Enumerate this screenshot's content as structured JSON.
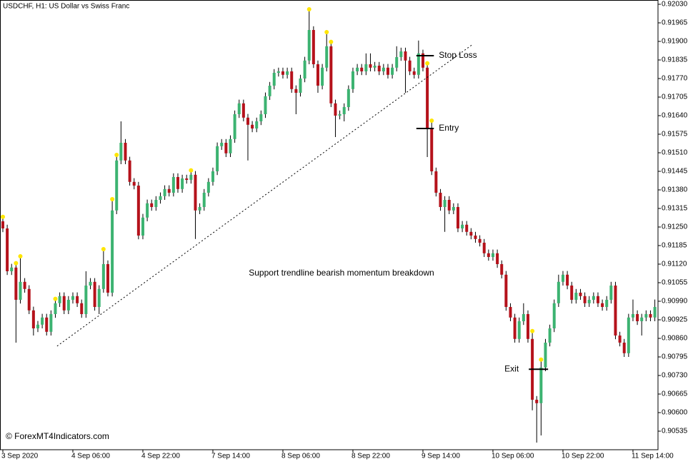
{
  "chart_data": {
    "type": "candlestick",
    "title": "USDCHF, H1:  US Dollar vs Swiss Franc",
    "annotation": "Support trendline bearish momentum breakdown",
    "watermark": "© ForexMT4Indicators.com",
    "up_color": "#3cb371",
    "down_color": "#b5121b",
    "wick_color": "#000000",
    "marker_color": "#ffe600",
    "xlim": [
      -0.65,
      149.72
    ],
    "xticks": [
      {
        "value": 0,
        "label": "3 Sep 2020"
      },
      {
        "value": 16,
        "label": "4 Sep 06:00"
      },
      {
        "value": 32,
        "label": "4 Sep 22:00"
      },
      {
        "value": 48,
        "label": "7 Sep 14:00"
      },
      {
        "value": 64,
        "label": "8 Sep 06:00"
      },
      {
        "value": 80,
        "label": "8 Sep 22:00"
      },
      {
        "value": 96,
        "label": "9 Sep 14:00"
      },
      {
        "value": 112,
        "label": "10 Sep 06:00"
      },
      {
        "value": 128,
        "label": "10 Sep 22:00"
      },
      {
        "value": 144,
        "label": "11 Sep 14:00"
      }
    ],
    "ylim": [
      0.9047,
      0.92045
    ],
    "yticks": [
      {
        "value": 0.9203,
        "label": "0.92030"
      },
      {
        "value": 0.91965,
        "label": "0.91965"
      },
      {
        "value": 0.919,
        "label": "0.91900"
      },
      {
        "value": 0.91835,
        "label": "0.91835"
      },
      {
        "value": 0.9177,
        "label": "0.91770"
      },
      {
        "value": 0.91705,
        "label": "0.91705"
      },
      {
        "value": 0.9164,
        "label": "0.91640"
      },
      {
        "value": 0.91575,
        "label": "0.91575"
      },
      {
        "value": 0.9151,
        "label": "0.91510"
      },
      {
        "value": 0.91445,
        "label": "0.91445"
      },
      {
        "value": 0.9138,
        "label": "0.91380"
      },
      {
        "value": 0.91315,
        "label": "0.91315"
      },
      {
        "value": 0.9125,
        "label": "0.91250"
      },
      {
        "value": 0.91185,
        "label": "0.91185"
      },
      {
        "value": 0.9112,
        "label": "0.91120"
      },
      {
        "value": 0.91055,
        "label": "0.91055"
      },
      {
        "value": 0.9099,
        "label": "0.90990"
      },
      {
        "value": 0.90925,
        "label": "0.90925"
      },
      {
        "value": 0.9086,
        "label": "0.90860"
      },
      {
        "value": 0.90795,
        "label": "0.90795"
      },
      {
        "value": 0.9073,
        "label": "0.90730"
      },
      {
        "value": 0.90665,
        "label": "0.90665"
      },
      {
        "value": 0.906,
        "label": "0.90600"
      },
      {
        "value": 0.90535,
        "label": "0.90535"
      }
    ],
    "open": [
      0.9127,
      0.91245,
      0.91095,
      0.91108,
      0.90995,
      0.91058,
      0.91033,
      0.90958,
      0.90895,
      0.90908,
      0.90933,
      0.90883,
      0.90945,
      0.90983,
      0.91008,
      0.90958,
      0.90995,
      0.91008,
      0.90983,
      0.90945,
      0.91045,
      0.91058,
      0.9097,
      0.91033,
      0.9112,
      0.9102,
      0.91308,
      0.91483,
      0.91545,
      0.91483,
      0.91408,
      0.91395,
      0.9122,
      0.91283,
      0.91333,
      0.9132,
      0.91345,
      0.91358,
      0.91383,
      0.9137,
      0.91425,
      0.91383,
      0.9142,
      0.91415,
      0.91433,
      0.91308,
      0.9132,
      0.9137,
      0.91408,
      0.91445,
      0.91533,
      0.91545,
      0.91508,
      0.91558,
      0.91645,
      0.91683,
      0.91633,
      0.91608,
      0.91595,
      0.9162,
      0.91645,
      0.91708,
      0.91745,
      0.9179,
      0.91795,
      0.91783,
      0.91795,
      0.91733,
      0.9172,
      0.9177,
      0.91833,
      0.9194,
      0.9182,
      0.91745,
      0.91808,
      0.91883,
      0.91683,
      0.9164,
      0.91645,
      0.9167,
      0.91733,
      0.91795,
      0.91808,
      0.91795,
      0.9182,
      0.91808,
      0.91815,
      0.91795,
      0.91808,
      0.91783,
      0.91808,
      0.91845,
      0.91865,
      0.91833,
      0.91795,
      0.91783,
      0.91858,
      0.91808,
      0.91595,
      0.91445,
      0.9137,
      0.9132,
      0.91345,
      0.91308,
      0.9132,
      0.91245,
      0.91258,
      0.91233,
      0.9122,
      0.91208,
      0.91195,
      0.91158,
      0.91145,
      0.91158,
      0.9112,
      0.91083,
      0.9097,
      0.90933,
      0.90858,
      0.9092,
      0.90945,
      0.90858,
      0.90645,
      0.90633,
      0.90758,
      0.90845,
      0.90895,
      0.90983,
      0.91058,
      0.91083,
      0.91045,
      0.90995,
      0.9102,
      0.91008,
      0.90983,
      0.90995,
      0.91008,
      0.90983,
      0.9097,
      0.90995,
      0.91045,
      0.9087,
      0.90845,
      0.90808,
      0.90933,
      0.90945,
      0.9092,
      0.90933,
      0.90945,
      0.90933
    ],
    "high": [
      0.91283,
      0.91258,
      0.91121,
      0.91121,
      0.91145,
      0.91071,
      0.91046,
      0.90971,
      0.90921,
      0.90946,
      0.90946,
      0.90958,
      0.90996,
      0.91021,
      0.91021,
      0.91008,
      0.91021,
      0.91021,
      0.90996,
      0.91095,
      0.91071,
      0.91071,
      0.91046,
      0.9117,
      0.91133,
      0.91345,
      0.915,
      0.9162,
      0.91558,
      0.91496,
      0.91421,
      0.91408,
      0.91296,
      0.91346,
      0.91346,
      0.91358,
      0.91371,
      0.91396,
      0.91396,
      0.91438,
      0.91438,
      0.91433,
      0.91433,
      0.91446,
      0.91446,
      0.91333,
      0.91383,
      0.91421,
      0.91458,
      0.91546,
      0.91558,
      0.91558,
      0.91571,
      0.91658,
      0.91696,
      0.91696,
      0.91646,
      0.91621,
      0.91633,
      0.91658,
      0.91721,
      0.91758,
      0.91803,
      0.91808,
      0.91808,
      0.91808,
      0.91808,
      0.91746,
      0.91783,
      0.91846,
      0.9201,
      0.91953,
      0.91833,
      0.91821,
      0.9193,
      0.91896,
      0.91696,
      0.91658,
      0.91683,
      0.91746,
      0.91808,
      0.91821,
      0.91821,
      0.91858,
      0.91858,
      0.91828,
      0.91828,
      0.91821,
      0.91821,
      0.91821,
      0.91883,
      0.91878,
      0.91878,
      0.91846,
      0.91808,
      0.91903,
      0.91871,
      0.91821,
      0.9162,
      0.91458,
      0.91383,
      0.91358,
      0.91358,
      0.91333,
      0.91333,
      0.91271,
      0.91271,
      0.91246,
      0.91233,
      0.91221,
      0.91208,
      0.91171,
      0.91171,
      0.91171,
      0.91133,
      0.91096,
      0.90983,
      0.90946,
      0.90933,
      0.90983,
      0.90958,
      0.90883,
      0.90658,
      0.90783,
      0.90858,
      0.90908,
      0.90996,
      0.91083,
      0.91096,
      0.91096,
      0.91058,
      0.91033,
      0.91033,
      0.91021,
      0.91008,
      0.91021,
      0.91021,
      0.90996,
      0.91008,
      0.91058,
      0.91058,
      0.90883,
      0.90858,
      0.90946,
      0.90996,
      0.90958,
      0.90946,
      0.90958,
      0.90958,
      0.90996
    ],
    "low": [
      0.91232,
      0.91082,
      0.91082,
      0.90845,
      0.90982,
      0.9102,
      0.90945,
      0.9087,
      0.90882,
      0.90895,
      0.9087,
      0.9087,
      0.90932,
      0.9097,
      0.90945,
      0.90945,
      0.90982,
      0.9097,
      0.90932,
      0.90932,
      0.91032,
      0.90957,
      0.90945,
      0.9102,
      0.91007,
      0.91007,
      0.91295,
      0.9147,
      0.9147,
      0.91395,
      0.91382,
      0.91207,
      0.91207,
      0.9127,
      0.91307,
      0.91307,
      0.91332,
      0.91345,
      0.91357,
      0.91357,
      0.9137,
      0.9137,
      0.91402,
      0.91402,
      0.91208,
      0.91295,
      0.91307,
      0.91357,
      0.91395,
      0.91432,
      0.9152,
      0.91495,
      0.91495,
      0.91545,
      0.91632,
      0.9162,
      0.91483,
      0.91582,
      0.91582,
      0.91607,
      0.91632,
      0.91695,
      0.91732,
      0.91777,
      0.9177,
      0.9177,
      0.9172,
      0.91645,
      0.91707,
      0.91757,
      0.9182,
      0.91807,
      0.9172,
      0.91732,
      0.91795,
      0.9167,
      0.91565,
      0.91627,
      0.9162,
      0.91657,
      0.9172,
      0.91782,
      0.91782,
      0.91782,
      0.91795,
      0.91795,
      0.91782,
      0.91782,
      0.9177,
      0.9177,
      0.91795,
      0.91832,
      0.9172,
      0.91782,
      0.9177,
      0.9177,
      0.91795,
      0.91495,
      0.91432,
      0.91357,
      0.91307,
      0.91233,
      0.91295,
      0.91295,
      0.91232,
      0.91232,
      0.9122,
      0.91207,
      0.91195,
      0.91182,
      0.91145,
      0.91132,
      0.91132,
      0.91107,
      0.9107,
      0.90957,
      0.9092,
      0.90845,
      0.90845,
      0.90907,
      0.90845,
      0.90608,
      0.90495,
      0.9052,
      0.90745,
      0.90832,
      0.90882,
      0.9097,
      0.91045,
      0.91032,
      0.90982,
      0.90982,
      0.90995,
      0.9097,
      0.9097,
      0.90982,
      0.9097,
      0.90957,
      0.90957,
      0.90982,
      0.90857,
      0.90832,
      0.90795,
      0.90795,
      0.9092,
      0.90907,
      0.9087,
      0.9092,
      0.9092,
      0.9092
    ],
    "close": [
      0.91245,
      0.91095,
      0.91108,
      0.90995,
      0.91058,
      0.91033,
      0.90958,
      0.90895,
      0.90908,
      0.90933,
      0.90883,
      0.90945,
      0.90983,
      0.91008,
      0.90958,
      0.90995,
      0.91008,
      0.90983,
      0.90945,
      0.91045,
      0.91058,
      0.9097,
      0.91033,
      0.9112,
      0.9102,
      0.91308,
      0.91483,
      0.91545,
      0.91483,
      0.91408,
      0.91395,
      0.9122,
      0.91283,
      0.91333,
      0.9132,
      0.91345,
      0.91358,
      0.91383,
      0.9137,
      0.91425,
      0.91383,
      0.9142,
      0.91415,
      0.91433,
      0.91308,
      0.9132,
      0.9137,
      0.91408,
      0.91445,
      0.91533,
      0.91545,
      0.91508,
      0.91558,
      0.91645,
      0.91683,
      0.91633,
      0.91608,
      0.91595,
      0.9162,
      0.91645,
      0.91708,
      0.91745,
      0.9179,
      0.91795,
      0.91783,
      0.91795,
      0.91733,
      0.9172,
      0.9177,
      0.91833,
      0.9194,
      0.9182,
      0.91745,
      0.91808,
      0.91883,
      0.91683,
      0.9164,
      0.91645,
      0.9167,
      0.91733,
      0.91795,
      0.91808,
      0.91795,
      0.9182,
      0.91808,
      0.91815,
      0.91795,
      0.91808,
      0.91783,
      0.91808,
      0.91845,
      0.91865,
      0.91833,
      0.91795,
      0.91783,
      0.91858,
      0.91808,
      0.91595,
      0.91445,
      0.9137,
      0.9132,
      0.91345,
      0.91308,
      0.9132,
      0.91245,
      0.91258,
      0.91233,
      0.9122,
      0.91208,
      0.91195,
      0.91158,
      0.91145,
      0.91158,
      0.9112,
      0.91083,
      0.9097,
      0.90933,
      0.90858,
      0.9092,
      0.90945,
      0.90858,
      0.90645,
      0.90633,
      0.90758,
      0.90845,
      0.90895,
      0.90983,
      0.91058,
      0.91083,
      0.91045,
      0.90995,
      0.9102,
      0.91008,
      0.90983,
      0.90995,
      0.91008,
      0.90983,
      0.9097,
      0.90995,
      0.91045,
      0.9087,
      0.90845,
      0.90808,
      0.90933,
      0.90945,
      0.9092,
      0.90933,
      0.90945,
      0.90933,
      0.9097
    ],
    "marked_highs": [
      0,
      3,
      4,
      12,
      23,
      25,
      26,
      43,
      70,
      74,
      75,
      97,
      98,
      121,
      123
    ],
    "trendline": {
      "x": [
        12.4,
        107.4
      ],
      "y": [
        0.90833,
        0.9189
      ]
    },
    "levels": [
      {
        "label": "Stop Loss",
        "value": 0.9185,
        "x": [
          94.5,
          98.5
        ],
        "label_side": "right"
      },
      {
        "label": "Entry",
        "value": 0.91595,
        "x": [
          94.5,
          98.5
        ],
        "label_side": "right"
      },
      {
        "label": "Exit",
        "value": 0.90752,
        "x": [
          120.2,
          124.6
        ],
        "label_side": "left"
      }
    ]
  }
}
